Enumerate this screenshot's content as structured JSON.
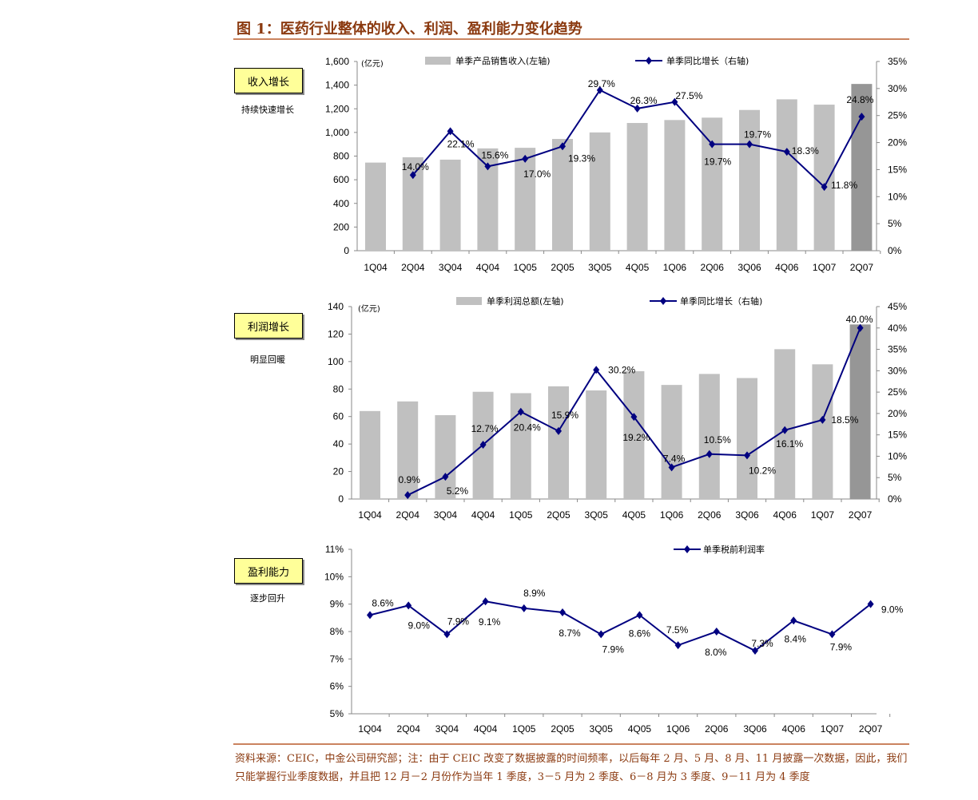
{
  "title": "图 1：医药行业整体的收入、利润、盈利能力变化趋势",
  "side_panels": [
    {
      "label": "收入增长",
      "subtitle": "持续快速增长"
    },
    {
      "label": "利润增长",
      "subtitle": "明显回暖"
    },
    {
      "label": "盈利能力",
      "subtitle": "逐步回升"
    }
  ],
  "footer": "资料来源：CEIC，中金公司研究部；注：由于 CEIC 改变了数据披露的时间频率，以后每年 2 月、5 月、8 月、11 月披露一次数据，因此，我们只能掌握行业季度数据，并且把 12 月－2 月份作为当年 1 季度，3－5 月为 2 季度、6－8 月为 3 季度、9－11 月为 4 季度",
  "colors": {
    "bar": "#c0c0c0",
    "bar_highlight": "#969696",
    "line": "#000080",
    "title": "#8b3a10"
  },
  "chart_data": [
    {
      "type": "bar+line",
      "unit_label": "(亿元)",
      "categories": [
        "1Q04",
        "2Q04",
        "3Q04",
        "4Q04",
        "1Q05",
        "2Q05",
        "3Q05",
        "4Q05",
        "1Q06",
        "2Q06",
        "3Q06",
        "4Q06",
        "1Q07",
        "2Q07"
      ],
      "series": [
        {
          "name": "单季产品销售收入(左轴)",
          "type": "bar",
          "axis": "left",
          "values": [
            745,
            790,
            770,
            865,
            870,
            945,
            1000,
            1080,
            1105,
            1125,
            1190,
            1280,
            1235,
            1410
          ]
        },
        {
          "name": "单季同比增长（右轴)",
          "type": "line",
          "axis": "right",
          "values": [
            null,
            14.0,
            22.1,
            15.6,
            17.0,
            19.3,
            29.7,
            26.3,
            27.5,
            19.7,
            19.7,
            18.3,
            11.8,
            24.8
          ],
          "labels": [
            "",
            "14.0%",
            "22.1%",
            "15.6%",
            "17.0%",
            "19.3%",
            "29.7%",
            "26.3%",
            "27.5%",
            "19.7%",
            "19.7%",
            "18.3%",
            "11.8%",
            "24.8%"
          ]
        }
      ],
      "left_axis": {
        "range": [
          0,
          1600
        ],
        "ticks": [
          "0",
          "200",
          "400",
          "600",
          "800",
          "1,000",
          "1,200",
          "1,400",
          "1,600"
        ]
      },
      "right_axis": {
        "range": [
          0,
          35
        ],
        "ticks": [
          "0%",
          "5%",
          "10%",
          "15%",
          "20%",
          "25%",
          "30%",
          "35%"
        ]
      }
    },
    {
      "type": "bar+line",
      "unit_label": "(亿元)",
      "categories": [
        "1Q04",
        "2Q04",
        "3Q04",
        "4Q04",
        "1Q05",
        "2Q05",
        "3Q05",
        "4Q05",
        "1Q06",
        "2Q06",
        "3Q06",
        "4Q06",
        "1Q07",
        "2Q07"
      ],
      "series": [
        {
          "name": "单季利润总额(左轴)",
          "type": "bar",
          "axis": "left",
          "values": [
            64,
            71,
            61,
            78,
            77,
            82,
            79,
            93,
            83,
            91,
            88,
            109,
            98,
            127
          ]
        },
        {
          "name": "单季同比增长（右轴)",
          "type": "line",
          "axis": "right",
          "values": [
            null,
            0.9,
            5.2,
            12.7,
            20.4,
            15.9,
            30.2,
            19.2,
            7.4,
            10.5,
            10.2,
            16.1,
            18.5,
            40.0
          ],
          "labels": [
            "",
            "0.9%",
            "5.2%",
            "12.7%",
            "20.4%",
            "15.9%",
            "30.2%",
            "19.2%",
            "7.4%",
            "10.5%",
            "10.2%",
            "16.1%",
            "18.5%",
            "40.0%"
          ]
        }
      ],
      "left_axis": {
        "range": [
          0,
          140
        ],
        "ticks": [
          "0",
          "20",
          "40",
          "60",
          "80",
          "100",
          "120",
          "140"
        ]
      },
      "right_axis": {
        "range": [
          0,
          45
        ],
        "ticks": [
          "0%",
          "5%",
          "10%",
          "15%",
          "20%",
          "25%",
          "30%",
          "35%",
          "40%",
          "45%"
        ]
      }
    },
    {
      "type": "line",
      "categories": [
        "1Q04",
        "2Q04",
        "3Q04",
        "4Q04",
        "1Q05",
        "2Q05",
        "3Q05",
        "4Q05",
        "1Q06",
        "2Q06",
        "3Q06",
        "4Q06",
        "1Q07",
        "2Q07"
      ],
      "series": [
        {
          "name": "单季税前利润率",
          "type": "line",
          "axis": "left",
          "values": [
            8.6,
            8.95,
            7.9,
            9.1,
            8.85,
            8.7,
            7.9,
            8.6,
            7.5,
            8.0,
            7.3,
            8.4,
            7.9,
            9.0
          ],
          "labels": [
            "8.6%",
            "9.0%",
            "7.9%",
            "9.1%",
            "8.9%",
            "8.7%",
            "7.9%",
            "8.6%",
            "7.5%",
            "8.0%",
            "7.3%",
            "8.4%",
            "7.9%",
            "9.0%"
          ]
        }
      ],
      "left_axis": {
        "range": [
          5,
          11
        ],
        "ticks": [
          "5%",
          "6%",
          "7%",
          "8%",
          "9%",
          "10%",
          "11%"
        ]
      }
    }
  ]
}
